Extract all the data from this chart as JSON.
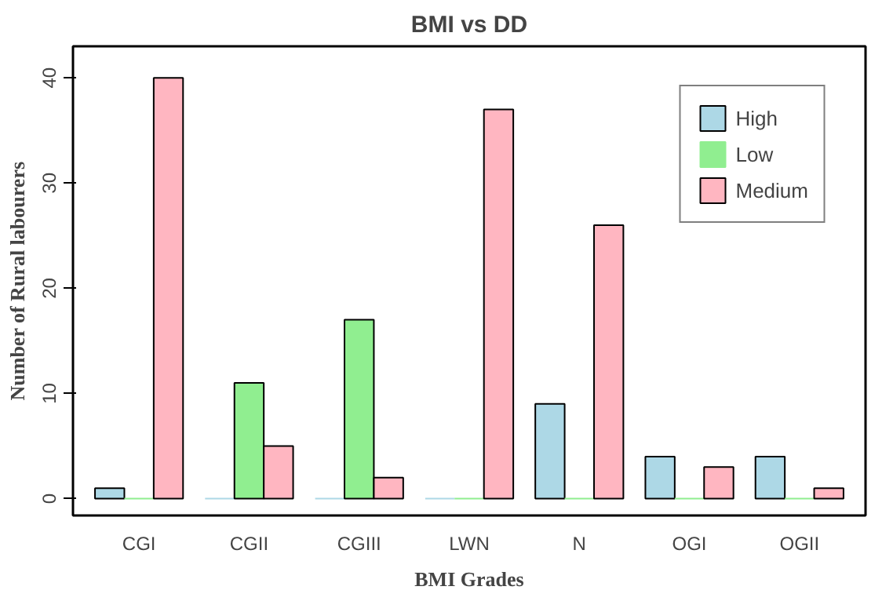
{
  "chart_data": {
    "type": "bar",
    "title": "BMI vs DD",
    "xlabel": "BMI Grades",
    "ylabel": "Number of Rural labourers",
    "categories": [
      "CGI",
      "CGII",
      "CGIII",
      "LWN",
      "N",
      "OGI",
      "OGII"
    ],
    "series": [
      {
        "name": "High",
        "color": "#add8e6",
        "values": [
          1,
          0,
          0,
          0,
          9,
          4,
          4
        ]
      },
      {
        "name": "Low",
        "color": "#90ee90",
        "values": [
          0,
          11,
          17,
          0,
          0,
          0,
          0
        ]
      },
      {
        "name": "Medium",
        "color": "#ffb6c1",
        "values": [
          40,
          5,
          2,
          37,
          26,
          3,
          1
        ]
      }
    ],
    "ylim": [
      -1.6,
      43
    ],
    "yticks": [
      0,
      10,
      20,
      30,
      40
    ],
    "grid": false,
    "legend": "top right"
  }
}
